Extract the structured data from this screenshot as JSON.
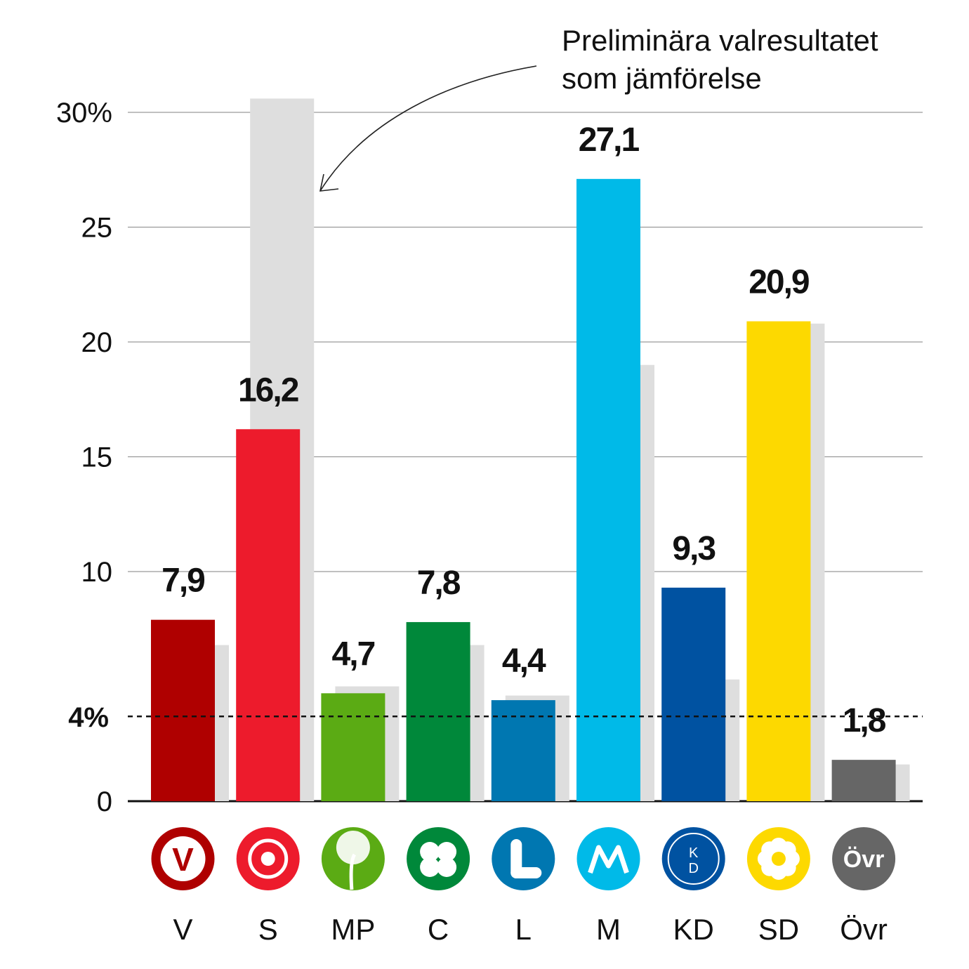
{
  "chart_data": {
    "type": "bar",
    "categories": [
      "V",
      "S",
      "MP",
      "C",
      "L",
      "M",
      "KD",
      "SD",
      "Övr"
    ],
    "series": [
      {
        "values": [
          7.9,
          16.2,
          4.7,
          7.8,
          4.4,
          27.1,
          9.3,
          20.9,
          1.8
        ]
      },
      {
        "values": [
          6.8,
          30.6,
          5.0,
          6.8,
          4.6,
          19.0,
          5.3,
          20.8,
          1.6
        ]
      }
    ],
    "value_labels": [
      "7,9",
      "16,2",
      "4,7",
      "7,8",
      "4,4",
      "27,1",
      "9,3",
      "20,9",
      "1,8"
    ],
    "colors": [
      "#AF0000",
      "#ED1B2C",
      "#5BAB14",
      "#00883A",
      "#0077B1",
      "#00BAE8",
      "#0052A1",
      "#FDD900",
      "#666666"
    ],
    "comparison_color": "#DEDEDE",
    "y_ticks": [
      0,
      10,
      15,
      20,
      25,
      30
    ],
    "y_tick_labels": [
      "0",
      "10",
      "15",
      "20",
      "25",
      "30%"
    ],
    "ylim": [
      0,
      30.6
    ],
    "threshold": {
      "value": 4,
      "label": "4%"
    },
    "annotation": {
      "lines": [
        "Preliminära valresultatet",
        "som jämförelse"
      ]
    },
    "party_logos": [
      "V",
      "rose-icon",
      "dandelion-icon",
      "clover-icon",
      "L",
      "M",
      "KD",
      "anemone-icon",
      "Övr"
    ],
    "grid": true,
    "xlabel": "",
    "ylabel": ""
  }
}
